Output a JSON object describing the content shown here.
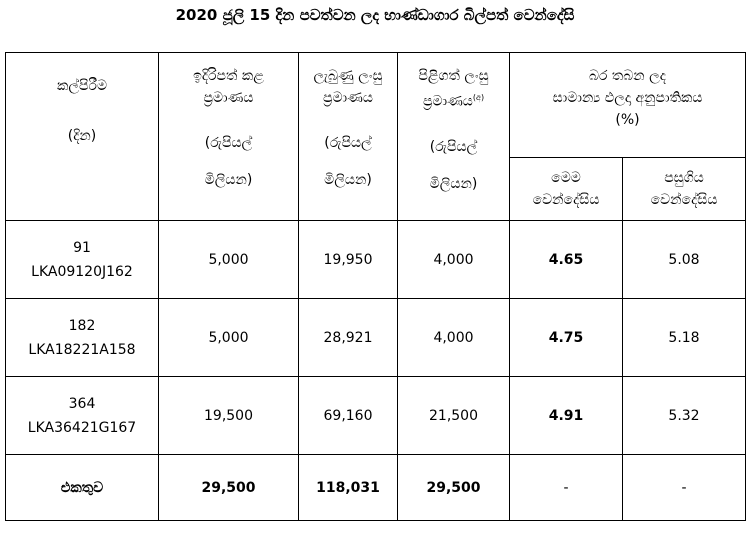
{
  "title": "2020 ජූලි 15 දින පවත්වන ලද භාණ්ඩාගාර බිල්පත් වෙන්දේසි",
  "table": {
    "header": {
      "maturity": {
        "name": "කල්පිරීම",
        "unit": "(දින)"
      },
      "offered": {
        "name": [
          "ඉදිරිපත් කළ",
          "ප්‍රමාණය"
        ],
        "unit": [
          "(රුපියල්",
          "මිලියන)"
        ]
      },
      "received": {
        "name": [
          "ලැබුණු ලංසු",
          "ප්‍රමාණය"
        ],
        "unit": [
          "(රුපියල්",
          "මිලියන)"
        ]
      },
      "accepted": {
        "name": [
          "පිළිගත් ලංසු",
          "ප්‍රමාණය"
        ],
        "note": "(අ)",
        "unit": [
          "(රුපියල්",
          "මිලියන)"
        ]
      },
      "yield": {
        "name": [
          "බර තබන ලද",
          "සාමාන්‍ය ඵලදා අනුපාතිකය",
          "(%)"
        ],
        "this_week": [
          "මෙම",
          "වෙන්දේසිය"
        ],
        "last_week": [
          "පසුගිය",
          "වෙන්දේසිය"
        ]
      }
    },
    "rows": [
      [
        "91",
        "LKA09120J162",
        "5,000",
        "19,950",
        "4,000",
        "4.65",
        "5.08"
      ],
      [
        "182",
        "LKA18221A158",
        "5,000",
        "28,921",
        "4,000",
        "4.75",
        "5.18"
      ],
      [
        "364",
        "LKA36421G167",
        "19,500",
        "69,160",
        "21,500",
        "4.91",
        "5.32"
      ]
    ],
    "total": [
      "එකතුව",
      "29,500",
      "118,031",
      "29,500",
      "-",
      "-"
    ]
  }
}
